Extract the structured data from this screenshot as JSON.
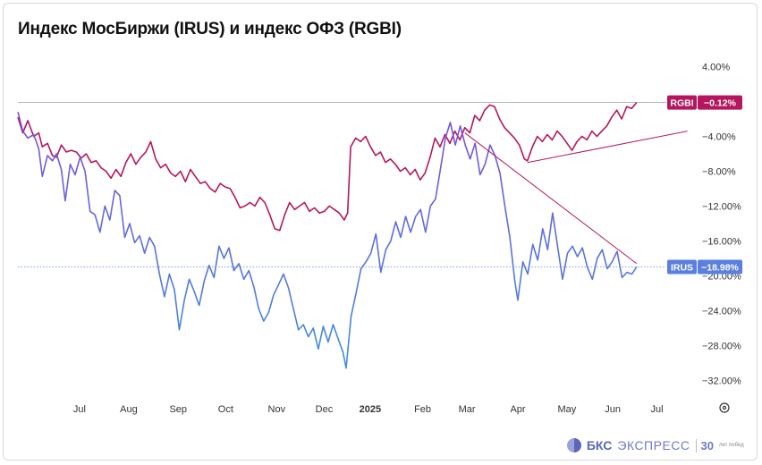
{
  "title": "Индекс МосБиржи (IRUS) и индекс ОФЗ (RGBI)",
  "logo": {
    "brand": "БКС",
    "name": "ЭКСПРЕСС",
    "years": "30",
    "tagline": "лет побед"
  },
  "colors": {
    "rgbi": "#b5175e",
    "irus_top": "#7c4fe0",
    "irus_bottom": "#3f8fdc",
    "trend": "#b5175e"
  },
  "chart_data": {
    "type": "line",
    "title": "Индекс МосБиржи (IRUS) и индекс ОФЗ (RGBI)",
    "xlabel": "",
    "ylabel": "",
    "unit": "%",
    "ylim": [
      -33.5,
      6
    ],
    "yticks": [
      4,
      -4,
      -8,
      -12,
      -16,
      -20,
      -24,
      -28,
      -32
    ],
    "ytick_labels": [
      "4.00%",
      "−4.00%",
      "−8.00%",
      "−12.00%",
      "−16.00%",
      "−20.00%",
      "−24.00%",
      "−28.00%",
      "−32.00%"
    ],
    "x_ticks": [
      {
        "label": "Jul",
        "x": 6.5
      },
      {
        "label": "Aug",
        "x": 32.3
      },
      {
        "label": "Sep",
        "x": 58.2
      },
      {
        "label": "Oct",
        "x": 83.1
      },
      {
        "label": "Nov",
        "x": 109.8
      },
      {
        "label": "Dec",
        "x": 134.7
      },
      {
        "label": "2025",
        "x": 158.8
      },
      {
        "label": "Feb",
        "x": 186.3
      },
      {
        "label": "Mar",
        "x": 209.5
      },
      {
        "label": "Apr",
        "x": 236.2
      },
      {
        "label": "May",
        "x": 261.9
      },
      {
        "label": "Jun",
        "x": 285.9
      },
      {
        "label": "Jul",
        "x": 309.1
      }
    ],
    "xlim": [
      -25.8,
      327.1
    ],
    "grid": false,
    "series": [
      {
        "name": "RGBI",
        "label": "RGBI",
        "last_value_label": "−0.12%",
        "last": -0.12,
        "points": [
          [
            -25.8,
            -1.8
          ],
          [
            -23.2,
            -3.6
          ],
          [
            -20.6,
            -2.2
          ],
          [
            -17.5,
            -4.0
          ],
          [
            -14.9,
            -3.6
          ],
          [
            -13.0,
            -5.2
          ],
          [
            -10.3,
            -4.8
          ],
          [
            -7.7,
            -6.2
          ],
          [
            -5.6,
            -6.4
          ],
          [
            -3.0,
            -5.0
          ],
          [
            -0.4,
            -5.8
          ],
          [
            2.2,
            -5.6
          ],
          [
            4.8,
            -5.8
          ],
          [
            7.4,
            -6.5
          ],
          [
            10.0,
            -6.0
          ],
          [
            12.6,
            -7.0
          ],
          [
            15.2,
            -6.8
          ],
          [
            17.8,
            -7.6
          ],
          [
            20.4,
            -8.0
          ],
          [
            23.0,
            -8.8
          ],
          [
            25.6,
            -7.8
          ],
          [
            28.2,
            -8.6
          ],
          [
            30.8,
            -7.0
          ],
          [
            33.4,
            -6.0
          ],
          [
            36.0,
            -7.2
          ],
          [
            38.6,
            -6.4
          ],
          [
            41.2,
            -5.8
          ],
          [
            43.8,
            -4.6
          ],
          [
            46.4,
            -6.6
          ],
          [
            49.0,
            -7.6
          ],
          [
            51.6,
            -7.2
          ],
          [
            54.2,
            -8.2
          ],
          [
            56.8,
            -8.6
          ],
          [
            59.4,
            -8.0
          ],
          [
            62.0,
            -9.2
          ],
          [
            64.6,
            -7.8
          ],
          [
            67.2,
            -8.6
          ],
          [
            69.8,
            -9.4
          ],
          [
            72.4,
            -9.2
          ],
          [
            75.0,
            -10.0
          ],
          [
            77.6,
            -10.4
          ],
          [
            80.2,
            -9.4
          ],
          [
            82.8,
            -9.8
          ],
          [
            85.4,
            -10.0
          ],
          [
            88.0,
            -11.0
          ],
          [
            90.6,
            -12.2
          ],
          [
            93.2,
            -12.0
          ],
          [
            95.8,
            -11.6
          ],
          [
            98.4,
            -12.0
          ],
          [
            101.0,
            -11.0
          ],
          [
            103.6,
            -11.6
          ],
          [
            106.2,
            -13.0
          ],
          [
            108.8,
            -14.6
          ],
          [
            111.4,
            -14.8
          ],
          [
            114.0,
            -13.0
          ],
          [
            116.6,
            -11.6
          ],
          [
            119.2,
            -12.4
          ],
          [
            121.8,
            -12.0
          ],
          [
            124.4,
            -11.6
          ],
          [
            127.0,
            -12.6
          ],
          [
            129.6,
            -12.2
          ],
          [
            132.2,
            -12.8
          ],
          [
            134.8,
            -12.6
          ],
          [
            137.4,
            -12.0
          ],
          [
            140.0,
            -12.4
          ],
          [
            142.6,
            -12.8
          ],
          [
            145.2,
            -13.6
          ],
          [
            147.0,
            -12.8
          ],
          [
            148.6,
            -5.2
          ],
          [
            151.2,
            -4.2
          ],
          [
            153.8,
            -4.6
          ],
          [
            156.4,
            -4.0
          ],
          [
            159.0,
            -5.2
          ],
          [
            161.6,
            -6.2
          ],
          [
            164.2,
            -5.8
          ],
          [
            166.8,
            -7.0
          ],
          [
            169.4,
            -6.6
          ],
          [
            172.0,
            -7.2
          ],
          [
            174.6,
            -8.0
          ],
          [
            177.2,
            -7.6
          ],
          [
            179.8,
            -8.4
          ],
          [
            182.4,
            -7.8
          ],
          [
            185.0,
            -9.0
          ],
          [
            187.6,
            -8.2
          ],
          [
            190.2,
            -6.4
          ],
          [
            192.8,
            -4.2
          ],
          [
            195.4,
            -5.2
          ],
          [
            198.0,
            -3.8
          ],
          [
            200.6,
            -4.8
          ],
          [
            203.2,
            -3.4
          ],
          [
            205.8,
            -4.4
          ],
          [
            208.4,
            -3.0
          ],
          [
            211.0,
            -3.6
          ],
          [
            213.6,
            -1.6
          ],
          [
            216.2,
            -2.2
          ],
          [
            218.8,
            -1.0
          ],
          [
            221.4,
            -0.4
          ],
          [
            224.0,
            -0.6
          ],
          [
            226.6,
            -2.0
          ],
          [
            229.2,
            -3.0
          ],
          [
            231.8,
            -3.6
          ],
          [
            234.4,
            -4.2
          ],
          [
            237.0,
            -5.0
          ],
          [
            239.6,
            -6.6
          ],
          [
            241.2,
            -6.8
          ],
          [
            243.8,
            -5.2
          ],
          [
            246.4,
            -4.0
          ],
          [
            249.0,
            -4.6
          ],
          [
            251.6,
            -3.8
          ],
          [
            254.2,
            -4.4
          ],
          [
            256.8,
            -3.4
          ],
          [
            259.4,
            -4.0
          ],
          [
            262.0,
            -4.8
          ],
          [
            264.6,
            -5.6
          ],
          [
            267.2,
            -4.6
          ],
          [
            269.8,
            -4.0
          ],
          [
            272.4,
            -4.4
          ],
          [
            275.0,
            -3.4
          ],
          [
            277.6,
            -4.0
          ],
          [
            280.2,
            -3.4
          ],
          [
            282.8,
            -2.8
          ],
          [
            285.4,
            -1.8
          ],
          [
            288.0,
            -1.0
          ],
          [
            290.6,
            -2.0
          ],
          [
            293.2,
            -0.6
          ],
          [
            295.8,
            -0.8
          ],
          [
            298.4,
            -0.12
          ]
        ]
      },
      {
        "name": "IRUS",
        "label": "IRUS",
        "last_value_label": "−18.98%",
        "last": -18.98,
        "points": [
          [
            -25.8,
            -1.2
          ],
          [
            -23.2,
            -3.4
          ],
          [
            -20.6,
            -4.2
          ],
          [
            -17.5,
            -3.8
          ],
          [
            -14.9,
            -5.4
          ],
          [
            -13.0,
            -8.6
          ],
          [
            -10.3,
            -6.2
          ],
          [
            -7.7,
            -6.8
          ],
          [
            -5.6,
            -6.0
          ],
          [
            -3.0,
            -7.8
          ],
          [
            -1.0,
            -11.4
          ],
          [
            1.6,
            -7.2
          ],
          [
            4.2,
            -8.4
          ],
          [
            6.8,
            -6.4
          ],
          [
            9.4,
            -8.0
          ],
          [
            12.0,
            -12.6
          ],
          [
            14.6,
            -13.0
          ],
          [
            17.2,
            -15.0
          ],
          [
            19.8,
            -12.0
          ],
          [
            22.4,
            -13.6
          ],
          [
            25.0,
            -10.2
          ],
          [
            27.6,
            -10.8
          ],
          [
            30.2,
            -15.6
          ],
          [
            32.8,
            -14.0
          ],
          [
            35.4,
            -16.2
          ],
          [
            38.0,
            -15.4
          ],
          [
            40.6,
            -17.4
          ],
          [
            43.2,
            -15.6
          ],
          [
            45.8,
            -16.6
          ],
          [
            48.4,
            -19.8
          ],
          [
            51.0,
            -22.4
          ],
          [
            53.6,
            -19.8
          ],
          [
            56.2,
            -21.6
          ],
          [
            58.8,
            -26.2
          ],
          [
            61.4,
            -22.8
          ],
          [
            64.0,
            -20.4
          ],
          [
            66.6,
            -21.8
          ],
          [
            69.2,
            -23.4
          ],
          [
            71.8,
            -20.6
          ],
          [
            74.4,
            -18.8
          ],
          [
            77.0,
            -20.2
          ],
          [
            79.6,
            -16.6
          ],
          [
            82.2,
            -18.0
          ],
          [
            84.8,
            -16.8
          ],
          [
            87.4,
            -19.4
          ],
          [
            90.0,
            -18.6
          ],
          [
            92.6,
            -20.4
          ],
          [
            95.2,
            -19.4
          ],
          [
            97.8,
            -21.2
          ],
          [
            100.4,
            -23.8
          ],
          [
            103.0,
            -25.2
          ],
          [
            105.6,
            -24.2
          ],
          [
            108.2,
            -22.2
          ],
          [
            110.8,
            -21.0
          ],
          [
            113.4,
            -19.8
          ],
          [
            116.0,
            -21.4
          ],
          [
            118.6,
            -23.8
          ],
          [
            121.2,
            -26.2
          ],
          [
            123.8,
            -25.6
          ],
          [
            126.4,
            -27.0
          ],
          [
            129.0,
            -26.0
          ],
          [
            131.6,
            -28.4
          ],
          [
            134.2,
            -25.8
          ],
          [
            136.8,
            -27.6
          ],
          [
            139.4,
            -25.6
          ],
          [
            142.0,
            -27.2
          ],
          [
            144.6,
            -28.8
          ],
          [
            146.2,
            -30.6
          ],
          [
            148.8,
            -24.6
          ],
          [
            151.4,
            -22.0
          ],
          [
            154.0,
            -19.2
          ],
          [
            156.6,
            -18.4
          ],
          [
            159.2,
            -17.4
          ],
          [
            161.8,
            -15.2
          ],
          [
            164.4,
            -19.6
          ],
          [
            167.0,
            -17.0
          ],
          [
            169.6,
            -16.0
          ],
          [
            172.2,
            -13.8
          ],
          [
            174.8,
            -15.6
          ],
          [
            177.4,
            -13.2
          ],
          [
            180.0,
            -15.0
          ],
          [
            182.6,
            -13.2
          ],
          [
            185.2,
            -12.4
          ],
          [
            187.8,
            -15.0
          ],
          [
            190.4,
            -12.0
          ],
          [
            193.0,
            -11.2
          ],
          [
            195.6,
            -7.8
          ],
          [
            198.2,
            -4.2
          ],
          [
            200.8,
            -2.4
          ],
          [
            203.4,
            -5.0
          ],
          [
            206.0,
            -2.8
          ],
          [
            208.6,
            -5.0
          ],
          [
            211.2,
            -6.6
          ],
          [
            213.8,
            -4.8
          ],
          [
            216.4,
            -8.4
          ],
          [
            219.0,
            -7.2
          ],
          [
            221.6,
            -5.0
          ],
          [
            224.2,
            -6.2
          ],
          [
            226.8,
            -8.2
          ],
          [
            229.4,
            -12.0
          ],
          [
            232.0,
            -15.6
          ],
          [
            234.6,
            -20.6
          ],
          [
            236.2,
            -22.8
          ],
          [
            238.8,
            -18.4
          ],
          [
            241.4,
            -19.8
          ],
          [
            244.0,
            -16.4
          ],
          [
            246.6,
            -18.2
          ],
          [
            249.2,
            -14.6
          ],
          [
            251.8,
            -17.0
          ],
          [
            254.4,
            -12.8
          ],
          [
            257.0,
            -16.6
          ],
          [
            259.6,
            -20.4
          ],
          [
            262.2,
            -17.4
          ],
          [
            264.8,
            -16.6
          ],
          [
            267.4,
            -17.8
          ],
          [
            270.0,
            -16.8
          ],
          [
            272.6,
            -19.0
          ],
          [
            275.2,
            -20.4
          ],
          [
            277.8,
            -18.0
          ],
          [
            280.4,
            -17.0
          ],
          [
            283.0,
            -19.2
          ],
          [
            285.6,
            -18.4
          ],
          [
            288.2,
            -17.2
          ],
          [
            290.8,
            -20.2
          ],
          [
            293.4,
            -19.6
          ],
          [
            296.0,
            -19.8
          ],
          [
            298.4,
            -18.98
          ]
        ]
      }
    ],
    "annotations": [
      {
        "type": "trendline",
        "series": "IRUS",
        "from": [
          208.4,
          -3.6
        ],
        "to": [
          298.4,
          -18.6
        ]
      },
      {
        "type": "trendline",
        "series": "RGBI",
        "from": [
          241.2,
          -7.0
        ],
        "to": [
          325.0,
          -3.4
        ]
      },
      {
        "type": "reference_line",
        "series": "RGBI",
        "value": -0.12,
        "style": "solid"
      },
      {
        "type": "reference_line",
        "series": "IRUS",
        "value": -18.98,
        "style": "dotted"
      }
    ]
  }
}
